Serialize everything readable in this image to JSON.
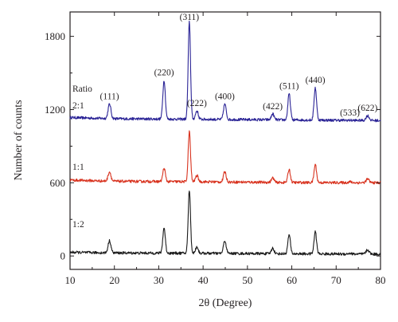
{
  "chart_data": {
    "type": "line",
    "xlabel": "2θ (Degree)",
    "ylabel": "Number of counts",
    "xlim": [
      10,
      80
    ],
    "ylim": [
      -110,
      2000
    ],
    "x_ticks": [
      10,
      20,
      30,
      40,
      50,
      60,
      70,
      80
    ],
    "y_ticks": [
      0,
      600,
      1200,
      1800
    ],
    "grid": false,
    "legend": "none",
    "annotations": {
      "ratio_title": "Ratio",
      "series_labels": [
        "2:1",
        "1:1",
        "1:2"
      ],
      "peak_labels": [
        {
          "text": "(111)",
          "x": 18.9
        },
        {
          "text": "(220)",
          "x": 31.2
        },
        {
          "text": "(311)",
          "x": 36.9
        },
        {
          "text": "(222)",
          "x": 38.6
        },
        {
          "text": "(400)",
          "x": 44.9
        },
        {
          "text": "(422)",
          "x": 55.7
        },
        {
          "text": "(511)",
          "x": 59.4
        },
        {
          "text": "(440)",
          "x": 65.3
        },
        {
          "text": "(533)",
          "x": 73.1
        },
        {
          "text": "(622)",
          "x": 77.1
        }
      ]
    },
    "peak_positions": [
      18.9,
      31.2,
      36.9,
      38.6,
      44.9,
      55.7,
      59.4,
      65.3,
      73.1,
      77.1
    ],
    "series": [
      {
        "label": "2:1",
        "color": "#2b2496",
        "baseline": [
          [
            10,
            1135
          ],
          [
            20,
            1125
          ],
          [
            40,
            1120
          ],
          [
            60,
            1115
          ],
          [
            80,
            1110
          ]
        ],
        "peak_heights": [
          1245,
          1440,
          1920,
          1190,
          1245,
          1165,
          1330,
          1380,
          1112,
          1150
        ]
      },
      {
        "label": "1:1",
        "color": "#d8321e",
        "baseline": [
          [
            10,
            622
          ],
          [
            20,
            612
          ],
          [
            40,
            608
          ],
          [
            60,
            602
          ],
          [
            80,
            600
          ]
        ],
        "peak_heights": [
          690,
          720,
          1020,
          660,
          690,
          640,
          710,
          750,
          608,
          630
        ]
      },
      {
        "label": "1:2",
        "color": "#1a1a1a",
        "baseline": [
          [
            10,
            30
          ],
          [
            20,
            25
          ],
          [
            40,
            22
          ],
          [
            60,
            18
          ],
          [
            80,
            15
          ]
        ],
        "peak_heights": [
          125,
          230,
          540,
          75,
          125,
          65,
          175,
          200,
          22,
          50
        ]
      }
    ]
  }
}
